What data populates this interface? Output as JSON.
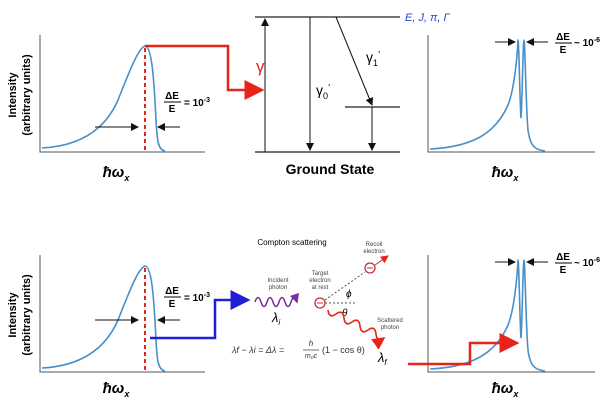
{
  "top_left": {
    "y_label": "Intensity",
    "y_sublabel": "(arbitrary units)",
    "delta": {
      "numerator": "ΔE",
      "denominator": "E",
      "relation": "= 10",
      "exponent": "-3"
    },
    "x_label": {
      "symbol": "ħω",
      "sub": "x"
    }
  },
  "top_center": {
    "gamma": "γ",
    "level_label": "E, J, π, Γ",
    "gamma0": {
      "symbol": "γ",
      "sub": "0",
      "mark": "’"
    },
    "gamma1": {
      "symbol": "γ",
      "sub": "1",
      "mark": "’"
    },
    "ground_state": "Ground State"
  },
  "top_right": {
    "delta": {
      "numerator": "ΔE",
      "denominator": "E",
      "relation": "~ 10",
      "exponent": "-6"
    },
    "x_label": {
      "symbol": "ħω",
      "sub": "x"
    }
  },
  "bottom_left": {
    "y_label": "Intensity",
    "y_sublabel": "(arbitrary units)",
    "delta": {
      "numerator": "ΔE",
      "denominator": "E",
      "relation": "= 10",
      "exponent": "-3"
    },
    "x_label": {
      "symbol": "ħω",
      "sub": "x"
    }
  },
  "compton": {
    "title": "Compton scattering",
    "incident": [
      "Incident",
      "photon"
    ],
    "lambda_i": {
      "symbol": "λ",
      "sub": "i"
    },
    "target": [
      "Target",
      "electron",
      "at rest"
    ],
    "recoil": [
      "Recoil",
      "electron"
    ],
    "phi": "ϕ",
    "theta": "θ",
    "scattered": [
      "Scattered",
      "photon"
    ],
    "lambda_f": {
      "symbol": "λ",
      "sub": "f"
    },
    "formula": {
      "left": "λf − λi = Δλ =",
      "numerator": "h",
      "denominator": "m₀c",
      "right": "(1 − cos θ)"
    }
  },
  "bottom_right": {
    "delta": {
      "numerator": "ΔE",
      "denominator": "E",
      "relation": "~ 10",
      "exponent": "-6"
    },
    "x_label": {
      "symbol": "ħω",
      "sub": "x"
    }
  }
}
